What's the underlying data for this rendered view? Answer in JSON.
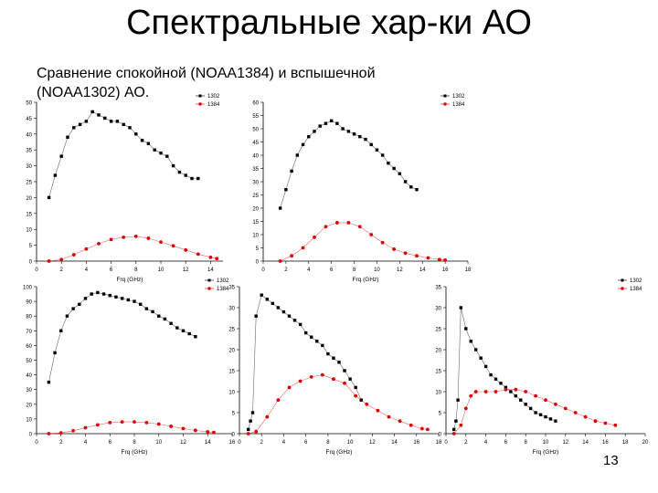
{
  "slide": {
    "title": "Спектральные хар-ки АО",
    "subtitle_line1": "Сравнение спокойной (NOAA1384) и вспышечной",
    "subtitle_line2": "(NOAA1302) АО.",
    "page_number": "13"
  },
  "colors": {
    "series_1302": "#000000",
    "series_1384": "#e00000"
  },
  "chart_data": [
    {
      "type": "scatter",
      "xlabel": "Frq (GHz)",
      "xlim": [
        0,
        15
      ],
      "ylim": [
        0,
        50
      ],
      "xticks": [
        0,
        2,
        4,
        6,
        8,
        10,
        12,
        14
      ],
      "yticks": [
        0,
        5,
        10,
        15,
        20,
        25,
        30,
        35,
        40,
        45,
        50
      ],
      "ytick_labels": [
        "0",
        "5",
        "10",
        "15",
        "20",
        "25",
        "30",
        "35",
        "40",
        "45",
        "50"
      ],
      "legend_position": "top-right",
      "series": [
        {
          "name": "1302",
          "x": [
            1.0,
            1.5,
            2.0,
            2.5,
            3.0,
            3.5,
            4.0,
            4.5,
            5.0,
            5.5,
            6.0,
            6.5,
            7.0,
            7.5,
            8.0,
            8.5,
            9.0,
            9.5,
            10.0,
            10.5,
            11.0,
            11.5,
            12.0,
            12.5,
            13.0
          ],
          "y": [
            20,
            27,
            33,
            39,
            42,
            43,
            44,
            47,
            46,
            45,
            44,
            44,
            43,
            42,
            40,
            38,
            37,
            35,
            34,
            33,
            30,
            28,
            27,
            26,
            26
          ]
        },
        {
          "name": "1384",
          "x": [
            1.0,
            2.0,
            3.0,
            4.0,
            5.0,
            6.0,
            7.0,
            8.0,
            9.0,
            10.0,
            11.0,
            12.0,
            13.0,
            14.0,
            14.5
          ],
          "y": [
            0,
            0.5,
            2,
            3.8,
            5.5,
            6.8,
            7.5,
            7.8,
            7.2,
            6.0,
            4.8,
            3.5,
            2.2,
            1.2,
            0.8
          ]
        }
      ]
    },
    {
      "type": "scatter",
      "xlabel": "Frq (GHz)",
      "xlim": [
        0,
        18
      ],
      "ylim": [
        0,
        60
      ],
      "xticks": [
        0,
        2,
        4,
        6,
        8,
        10,
        12,
        14,
        16,
        18
      ],
      "yticks": [
        0,
        5,
        10,
        15,
        20,
        25,
        30,
        35,
        40,
        45,
        50,
        55,
        60
      ],
      "ytick_labels": [
        "0",
        "5",
        "10",
        "15",
        "20",
        "25",
        "30",
        "35",
        "40",
        "45",
        "50",
        "55",
        "60"
      ],
      "legend_position": "top-right",
      "series": [
        {
          "name": "1302",
          "x": [
            1.5,
            2.0,
            2.5,
            3.0,
            3.5,
            4.0,
            4.5,
            5.0,
            5.5,
            6.0,
            6.5,
            7.0,
            7.5,
            8.0,
            8.5,
            9.0,
            9.5,
            10.0,
            10.5,
            11.0,
            11.5,
            12.0,
            12.5,
            13.0,
            13.5
          ],
          "y": [
            20,
            27,
            34,
            40,
            44,
            47,
            49,
            51,
            52,
            53,
            52,
            50,
            49,
            48,
            47,
            46,
            44,
            42,
            40,
            37,
            35,
            33,
            30,
            28,
            27
          ]
        },
        {
          "name": "1384",
          "x": [
            1.5,
            2.5,
            3.5,
            4.5,
            5.5,
            6.5,
            7.5,
            8.5,
            9.5,
            10.5,
            11.5,
            12.5,
            13.5,
            14.5,
            15.5,
            16.0
          ],
          "y": [
            0,
            2,
            5,
            9,
            13,
            14.5,
            14.5,
            13,
            10,
            7,
            4.5,
            3,
            2,
            1.2,
            0.6,
            0.4
          ]
        }
      ]
    },
    {
      "type": "scatter",
      "xlabel": "Frq (GHz)",
      "xlim": [
        0,
        16
      ],
      "ylim": [
        0,
        100
      ],
      "xticks": [
        0,
        2,
        4,
        6,
        8,
        10,
        12,
        14,
        16
      ],
      "yticks": [
        0,
        10,
        20,
        30,
        40,
        50,
        60,
        70,
        80,
        90,
        100
      ],
      "ytick_labels": [
        "0",
        "10",
        "20",
        "30",
        "40",
        "50",
        "60",
        "70",
        "80",
        "90",
        "100"
      ],
      "legend_position": "top-right",
      "series": [
        {
          "name": "1302",
          "x": [
            1.0,
            1.5,
            2.0,
            2.5,
            3.0,
            3.5,
            4.0,
            4.5,
            5.0,
            5.5,
            6.0,
            6.5,
            7.0,
            7.5,
            8.0,
            8.5,
            9.0,
            9.5,
            10.0,
            10.5,
            11.0,
            11.5,
            12.0,
            12.5,
            13.0
          ],
          "y": [
            35,
            55,
            70,
            80,
            85,
            88,
            92,
            95,
            96,
            95,
            94,
            93,
            92,
            91,
            90,
            88,
            85,
            83,
            80,
            78,
            75,
            72,
            70,
            68,
            66
          ]
        },
        {
          "name": "1384",
          "x": [
            1.0,
            2.0,
            3.0,
            4.0,
            5.0,
            6.0,
            7.0,
            8.0,
            9.0,
            10.0,
            11.0,
            12.0,
            13.0,
            14.0,
            14.5
          ],
          "y": [
            0,
            0.5,
            2,
            4,
            6,
            7.5,
            8,
            8,
            7.5,
            6.5,
            5,
            3.5,
            2.2,
            1.2,
            0.8
          ]
        }
      ]
    },
    {
      "type": "scatter",
      "xlabel": "Frq (GHz)",
      "xlim": [
        0,
        18
      ],
      "ylim": [
        0,
        35
      ],
      "xticks": [
        0,
        2,
        4,
        6,
        8,
        10,
        12,
        14,
        16,
        18
      ],
      "yticks": [
        0,
        5,
        10,
        15,
        20,
        25,
        30,
        35
      ],
      "ytick_labels": [
        "0",
        "5",
        "10",
        "15",
        "20",
        "25",
        "30",
        "35"
      ],
      "legend_position": "none",
      "series": [
        {
          "name": "1302",
          "x": [
            0.8,
            1.0,
            1.2,
            1.5,
            2.0,
            2.5,
            3.0,
            3.5,
            4.0,
            4.5,
            5.0,
            5.5,
            6.0,
            6.5,
            7.0,
            7.5,
            8.0,
            8.5,
            9.0,
            9.5,
            10.0,
            10.5,
            11.0
          ],
          "y": [
            1,
            3,
            5,
            28,
            33,
            32,
            31,
            30,
            29,
            28,
            27,
            26,
            24,
            23,
            22,
            21,
            19,
            18,
            17,
            15,
            13,
            11,
            8
          ]
        },
        {
          "name": "1384",
          "x": [
            0.8,
            1.5,
            2.5,
            3.5,
            4.5,
            5.5,
            6.5,
            7.5,
            8.5,
            9.5,
            10.5,
            11.5,
            12.5,
            13.5,
            14.5,
            15.5,
            16.5,
            17.0
          ],
          "y": [
            0,
            0.5,
            4,
            8,
            11,
            12.5,
            13.5,
            14,
            13,
            12,
            9,
            7,
            5.5,
            4,
            3,
            2,
            1.2,
            1
          ]
        }
      ]
    },
    {
      "type": "scatter",
      "xlabel": "Frq (GHz)",
      "xlim": [
        0,
        20
      ],
      "ylim": [
        0,
        35
      ],
      "xticks": [
        0,
        2,
        4,
        6,
        8,
        10,
        12,
        14,
        16,
        18,
        20
      ],
      "xtick_labels": [
        "0",
        "2",
        "4",
        "6",
        "8",
        "10",
        "12",
        "14",
        "16",
        "18",
        "20"
      ],
      "yticks": [
        0,
        5,
        10,
        15,
        20,
        25,
        30,
        35
      ],
      "ytick_labels": [
        "0",
        "5",
        "10",
        "15",
        "20",
        "25",
        "30",
        "35"
      ],
      "legend_position": "top-right",
      "series": [
        {
          "name": "1302",
          "x": [
            0.8,
            1.0,
            1.2,
            1.5,
            2.0,
            2.5,
            3.0,
            3.5,
            4.0,
            4.5,
            5.0,
            5.5,
            6.0,
            6.5,
            7.0,
            7.5,
            8.0,
            8.5,
            9.0,
            9.5,
            10.0,
            10.5,
            11.0
          ],
          "y": [
            1,
            3,
            8,
            30,
            25,
            22,
            20,
            18,
            16,
            14,
            13,
            12,
            11,
            10,
            9,
            8,
            7,
            6,
            5,
            4.5,
            4,
            3.5,
            3
          ]
        },
        {
          "name": "1384",
          "x": [
            0.8,
            1.5,
            2.0,
            2.5,
            3.0,
            4.0,
            5.0,
            6.0,
            7.0,
            8.0,
            9.0,
            10.0,
            11.0,
            12.0,
            13.0,
            14.0,
            15.0,
            16.0,
            17.0
          ],
          "y": [
            0,
            2,
            6,
            9,
            10,
            10,
            10,
            10.5,
            10.5,
            10,
            9,
            8,
            7,
            6,
            5,
            4,
            3,
            2.5,
            2
          ]
        }
      ]
    }
  ]
}
